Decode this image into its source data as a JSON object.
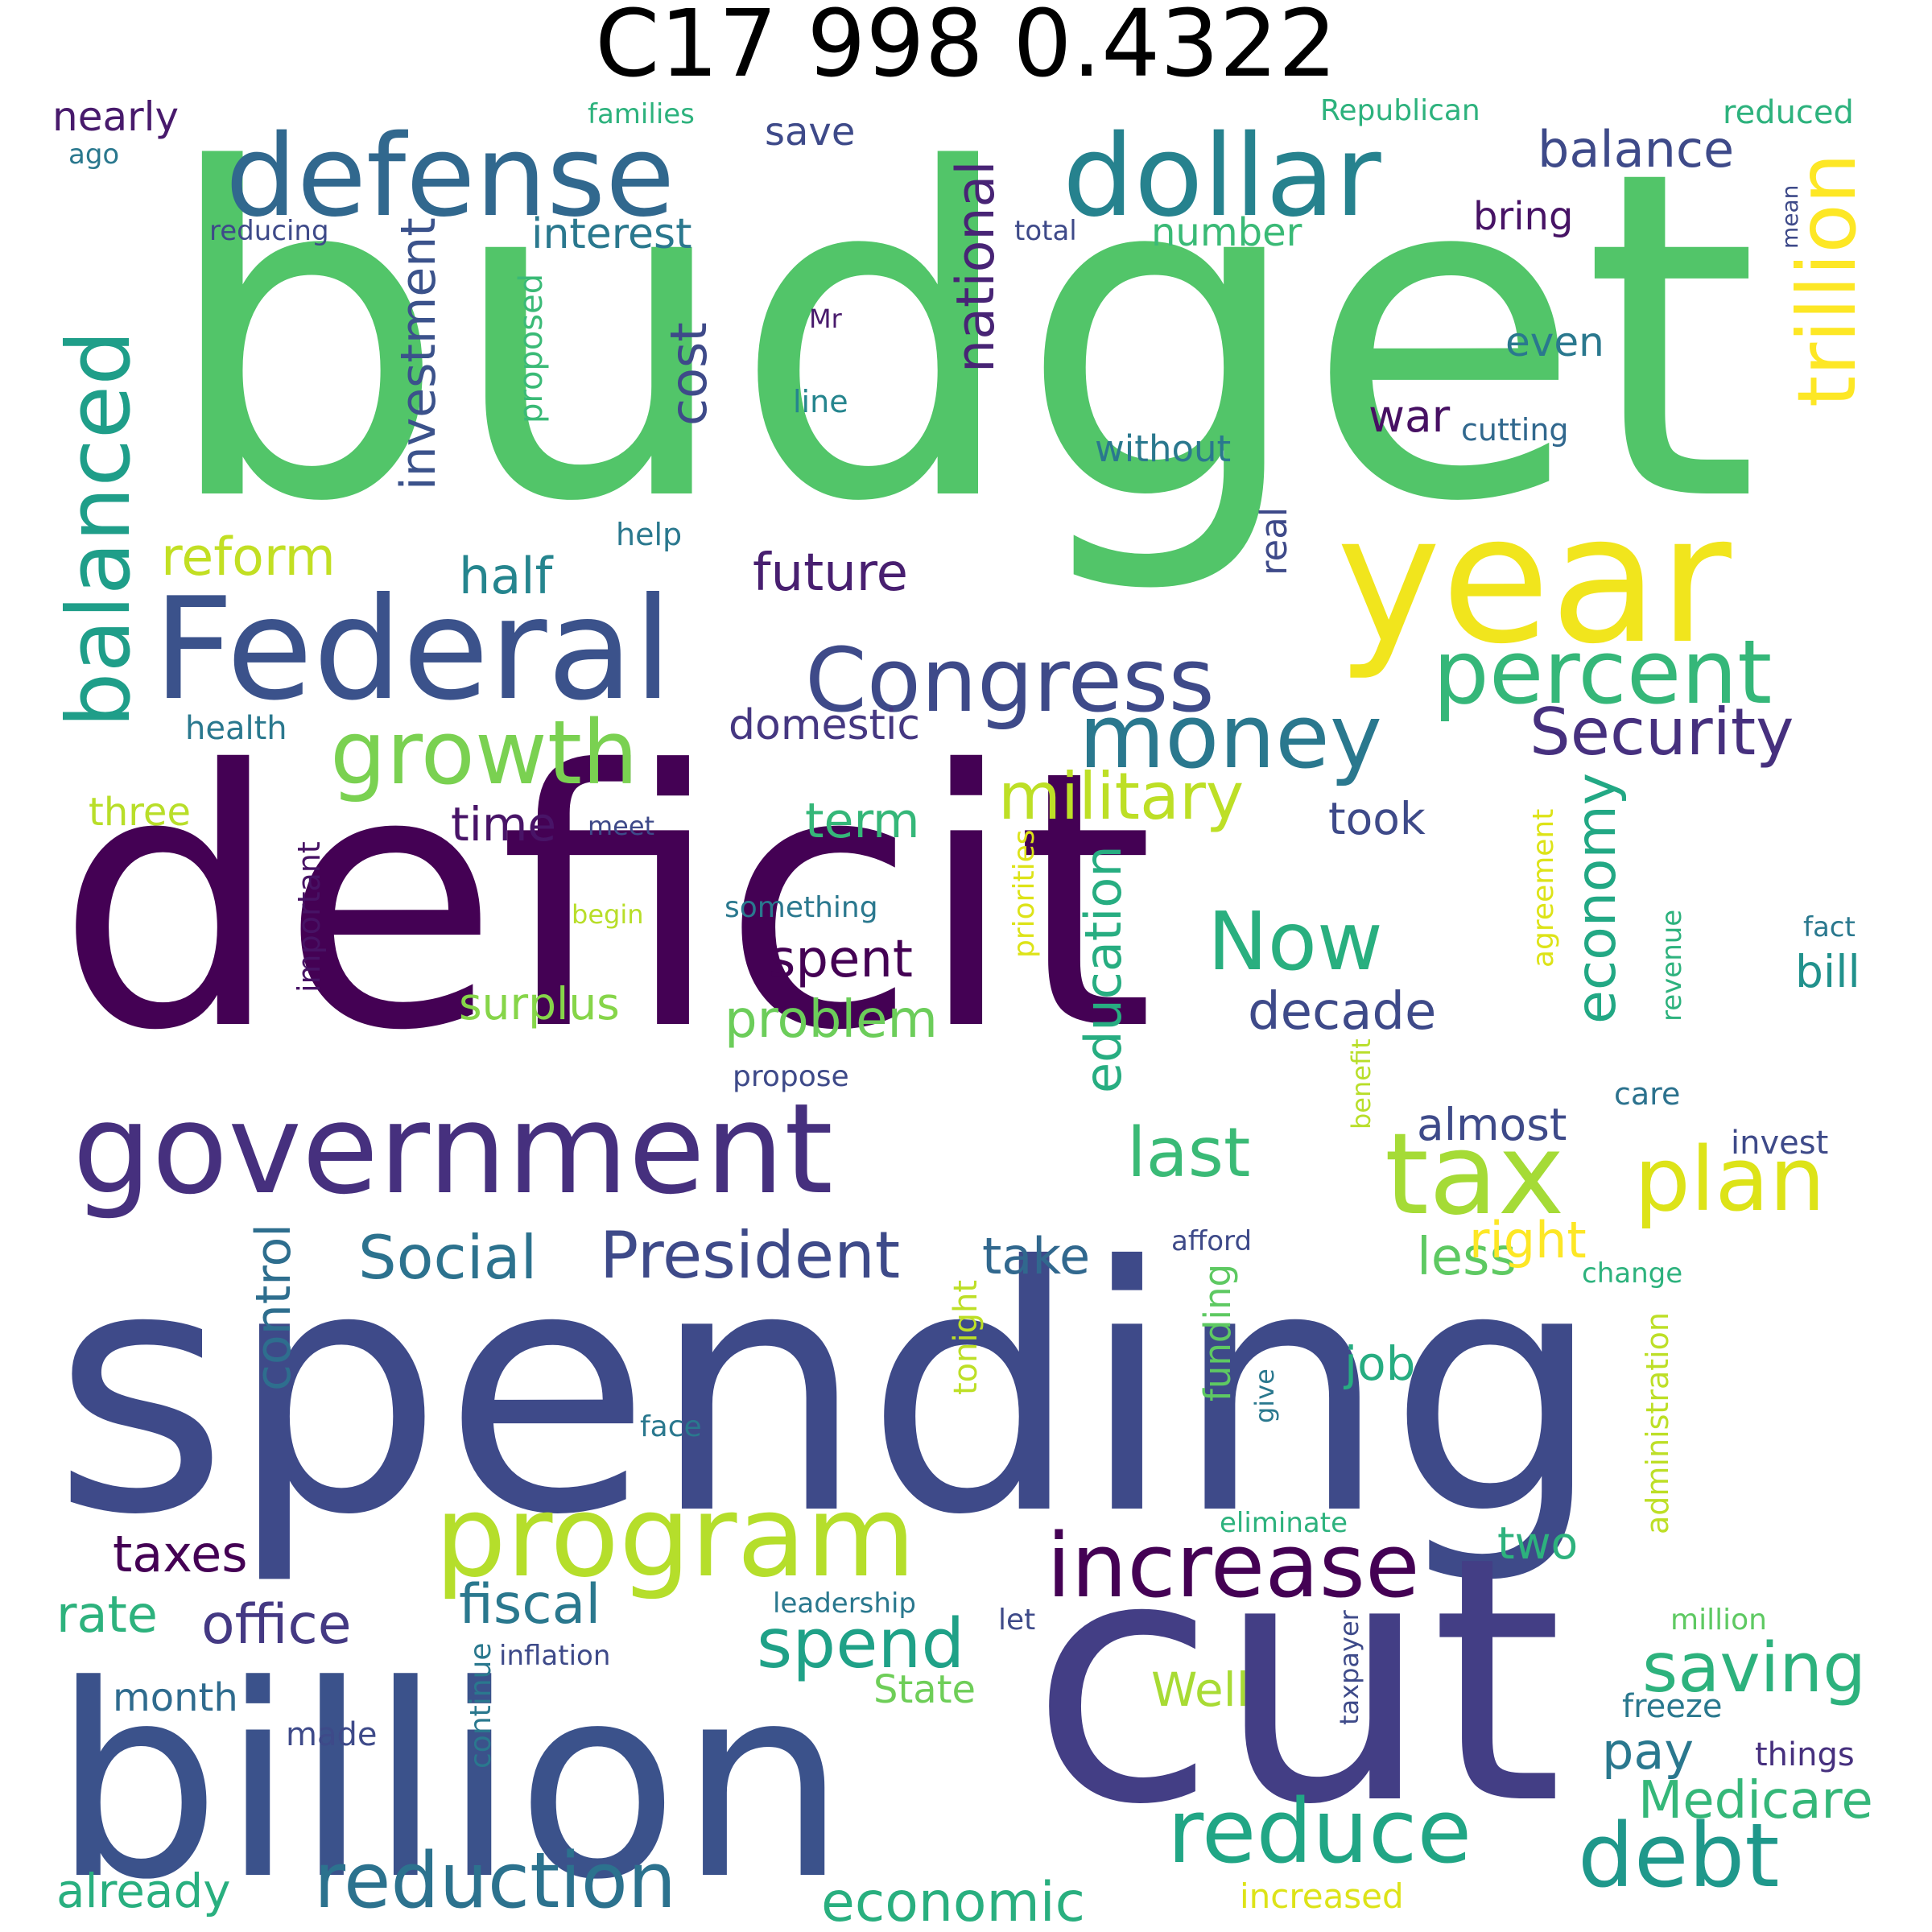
{
  "title": "C17 998 0.4322",
  "words": [
    {
      "text": "budget",
      "color": "#52c569"
    },
    {
      "text": "deficit",
      "color": "#440154"
    },
    {
      "text": "spending",
      "color": "#3e4a89"
    },
    {
      "text": "cut",
      "color": "#433e85"
    },
    {
      "text": "billion",
      "color": "#3b528b"
    },
    {
      "text": "year",
      "color": "#f1e51d"
    },
    {
      "text": "Federal",
      "color": "#3b528b"
    },
    {
      "text": "government",
      "color": "#46307e"
    },
    {
      "text": "defense",
      "color": "#31688e"
    },
    {
      "text": "dollar",
      "color": "#26828e"
    },
    {
      "text": "program",
      "color": "#b5de2b"
    },
    {
      "text": "tax",
      "color": "#a5db36"
    },
    {
      "text": "Congress",
      "color": "#3e4a89"
    },
    {
      "text": "increase",
      "color": "#440154"
    },
    {
      "text": "reduce",
      "color": "#21a685"
    },
    {
      "text": "debt",
      "color": "#1f988b"
    },
    {
      "text": "reduction",
      "color": "#2c728e"
    },
    {
      "text": "money",
      "color": "#2a788e"
    },
    {
      "text": "percent",
      "color": "#35b779"
    },
    {
      "text": "growth",
      "color": "#7ad151"
    },
    {
      "text": "balanced",
      "color": "#1f9e89"
    },
    {
      "text": "trillion",
      "color": "#fde725"
    },
    {
      "text": "plan",
      "color": "#dde318"
    },
    {
      "text": "Now",
      "color": "#29af7f"
    },
    {
      "text": "military",
      "color": "#bddf26"
    },
    {
      "text": "Security",
      "color": "#46307e"
    },
    {
      "text": "President",
      "color": "#3e4a89"
    },
    {
      "text": "spend",
      "color": "#1fa187"
    },
    {
      "text": "saving",
      "color": "#2db27d"
    },
    {
      "text": "last",
      "color": "#3aba76"
    },
    {
      "text": "national",
      "color": "#482475"
    },
    {
      "text": "Social",
      "color": "#2c728e"
    },
    {
      "text": "economy",
      "color": "#22a884"
    },
    {
      "text": "investment",
      "color": "#3b528b"
    },
    {
      "text": "education",
      "color": "#27ad81"
    },
    {
      "text": "cost",
      "color": "#3e4a89"
    },
    {
      "text": "office",
      "color": "#443983"
    },
    {
      "text": "fiscal",
      "color": "#2a788e"
    },
    {
      "text": "economic",
      "color": "#29af7f"
    },
    {
      "text": "future",
      "color": "#481f70"
    },
    {
      "text": "spent",
      "color": "#440154"
    },
    {
      "text": "problem",
      "color": "#6ccd5a"
    },
    {
      "text": "decade",
      "color": "#3e4a89"
    },
    {
      "text": "Medicare",
      "color": "#35b779"
    },
    {
      "text": "less",
      "color": "#5ec962"
    },
    {
      "text": "control",
      "color": "#2e6e8e"
    },
    {
      "text": "reform",
      "color": "#c2df23"
    },
    {
      "text": "balance",
      "color": "#3e4a89"
    },
    {
      "text": "taxes",
      "color": "#440154"
    },
    {
      "text": "rate",
      "color": "#2db27d"
    },
    {
      "text": "already",
      "color": "#29af7f"
    },
    {
      "text": "right",
      "color": "#fde725"
    },
    {
      "text": "pay",
      "color": "#2a788e"
    },
    {
      "text": "half",
      "color": "#25858e"
    },
    {
      "text": "term",
      "color": "#35b779"
    },
    {
      "text": "time",
      "color": "#481467"
    },
    {
      "text": "take",
      "color": "#31688e"
    },
    {
      "text": "job",
      "color": "#27ad81"
    },
    {
      "text": "Well",
      "color": "#a8db34"
    },
    {
      "text": "interest",
      "color": "#2a788e"
    },
    {
      "text": "domestic",
      "color": "#453781"
    },
    {
      "text": "surplus",
      "color": "#86d549"
    },
    {
      "text": "almost",
      "color": "#3e4a89"
    },
    {
      "text": "two",
      "color": "#2db27d"
    },
    {
      "text": "bill",
      "color": "#21918c"
    },
    {
      "text": "took",
      "color": "#3e4a89"
    },
    {
      "text": "war",
      "color": "#471063"
    },
    {
      "text": "even",
      "color": "#2a788e"
    },
    {
      "text": "save",
      "color": "#3e4a89"
    },
    {
      "text": "number",
      "color": "#3aba76"
    },
    {
      "text": "bring",
      "color": "#471365"
    },
    {
      "text": "nearly",
      "color": "#481a6c"
    },
    {
      "text": "three",
      "color": "#b8de29"
    },
    {
      "text": "month",
      "color": "#2f6b8e"
    },
    {
      "text": "State",
      "color": "#6ece58"
    },
    {
      "text": "real",
      "color": "#3e4a89"
    },
    {
      "text": "without",
      "color": "#2a788e"
    },
    {
      "text": "proposed",
      "color": "#3aba76"
    },
    {
      "text": "funding",
      "color": "#5ec962"
    },
    {
      "text": "tonight",
      "color": "#bddf26"
    },
    {
      "text": "health",
      "color": "#2a788e"
    },
    {
      "text": "important",
      "color": "#471365"
    },
    {
      "text": "cutting",
      "color": "#31688e"
    },
    {
      "text": "care",
      "color": "#2c728e"
    },
    {
      "text": "freeze",
      "color": "#2a788e"
    },
    {
      "text": "things",
      "color": "#46307e"
    },
    {
      "text": "made",
      "color": "#3e4a89"
    },
    {
      "text": "administration",
      "color": "#bddf26"
    },
    {
      "text": "line",
      "color": "#25858e"
    },
    {
      "text": "help",
      "color": "#2a788e"
    },
    {
      "text": "priorities",
      "color": "#dde318"
    },
    {
      "text": "agreement",
      "color": "#dde318"
    },
    {
      "text": "revenue",
      "color": "#2db27d"
    },
    {
      "text": "increased",
      "color": "#dde318"
    },
    {
      "text": "continue",
      "color": "#2a788e"
    },
    {
      "text": "taxpayer",
      "color": "#3e4a89"
    },
    {
      "text": "reducing",
      "color": "#3e4a89"
    },
    {
      "text": "total",
      "color": "#3e4a89"
    },
    {
      "text": "mean",
      "color": "#3e4a89"
    },
    {
      "text": "Mr",
      "color": "#481a6c"
    },
    {
      "text": "families",
      "color": "#2db27d"
    },
    {
      "text": "Republican",
      "color": "#2db27d"
    },
    {
      "text": "reduced",
      "color": "#2db27d"
    },
    {
      "text": "ago",
      "color": "#2a788e"
    },
    {
      "text": "meet",
      "color": "#3e4a89"
    },
    {
      "text": "begin",
      "color": "#b8de29"
    },
    {
      "text": "something",
      "color": "#2a788e"
    },
    {
      "text": "fact",
      "color": "#2a788e"
    },
    {
      "text": "propose",
      "color": "#3e4a89"
    },
    {
      "text": "benefit",
      "color": "#b8de29"
    },
    {
      "text": "invest",
      "color": "#3e4a89"
    },
    {
      "text": "afford",
      "color": "#3e4a89"
    },
    {
      "text": "change",
      "color": "#2db27d"
    },
    {
      "text": "give",
      "color": "#2a788e"
    },
    {
      "text": "face",
      "color": "#2a788e"
    },
    {
      "text": "eliminate",
      "color": "#2db27d"
    },
    {
      "text": "leadership",
      "color": "#2a788e"
    },
    {
      "text": "let",
      "color": "#3e4a89"
    },
    {
      "text": "inflation",
      "color": "#3e4a89"
    },
    {
      "text": "million",
      "color": "#5ec962"
    }
  ]
}
